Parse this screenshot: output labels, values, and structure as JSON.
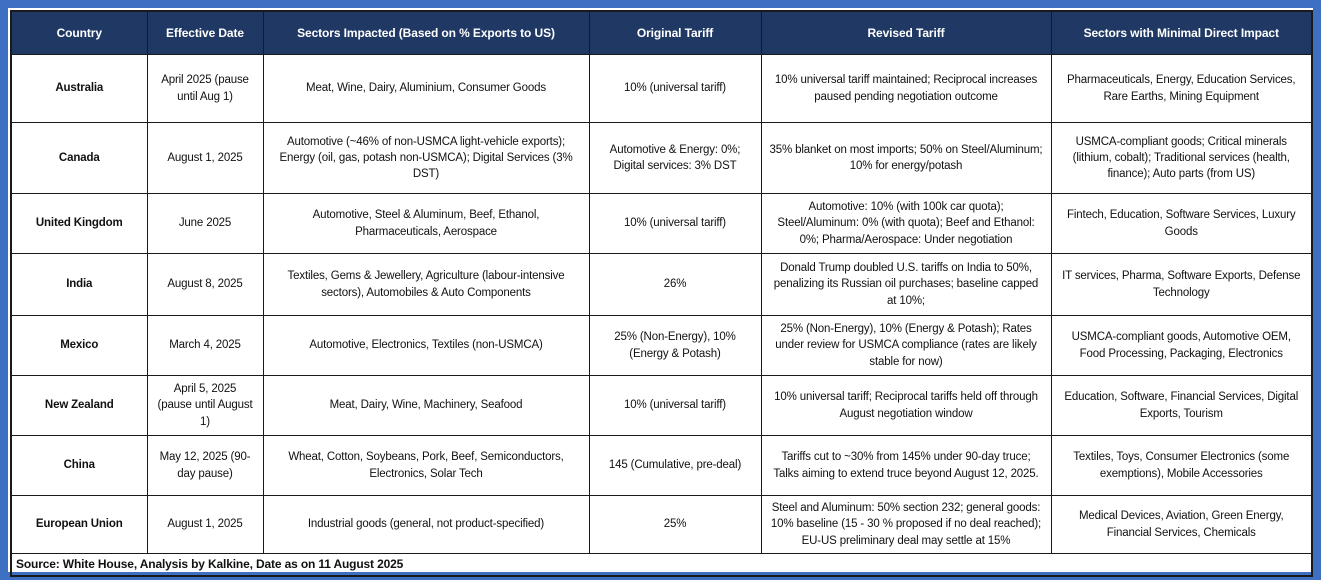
{
  "theme": {
    "frame_border_color": "#3d6fc2",
    "header_bg_color": "#1F3864",
    "header_text_color": "#FFFFFF",
    "body_text_color": "#111111"
  },
  "table": {
    "columns": [
      "Country",
      "Effective Date",
      "Sectors Impacted (Based on % Exports to US)",
      "Original Tariff",
      "Revised Tariff",
      "Sectors with Minimal Direct Impact"
    ],
    "rows": [
      {
        "country": "Australia",
        "effective_date": "April 2025 (pause until Aug 1)",
        "sectors_impacted": "Meat, Wine, Dairy, Aluminium, Consumer Goods",
        "original_tariff": "10% (universal tariff)",
        "revised_tariff": "10% universal tariff maintained; Reciprocal increases paused pending negotiation outcome",
        "minimal_impact": "Pharmaceuticals, Energy, Education Services, Rare Earths, Mining Equipment"
      },
      {
        "country": "Canada",
        "effective_date": "August 1, 2025",
        "sectors_impacted": "Automotive (~46% of non-USMCA light-vehicle exports); Energy (oil, gas, potash non-USMCA); Digital Services (3% DST)",
        "original_tariff": "Automotive & Energy: 0%; Digital services: 3% DST",
        "revised_tariff": "35% blanket on most imports; 50% on Steel/Aluminum; 10% for energy/potash",
        "minimal_impact": "USMCA-compliant goods; Critical minerals (lithium, cobalt); Traditional services (health, finance); Auto parts (from US)"
      },
      {
        "country": "United Kingdom",
        "effective_date": "June 2025",
        "sectors_impacted": "Automotive, Steel & Aluminum, Beef, Ethanol, Pharmaceuticals, Aerospace",
        "original_tariff": "10% (universal tariff)",
        "revised_tariff": "Automotive: 10% (with 100k car quota); Steel/Aluminum: 0% (with quota); Beef and Ethanol: 0%; Pharma/Aerospace: Under negotiation",
        "minimal_impact": "Fintech, Education, Software Services, Luxury Goods"
      },
      {
        "country": "India",
        "effective_date": "August 8, 2025",
        "sectors_impacted": "Textiles, Gems & Jewellery, Agriculture (labour-intensive sectors), Automobiles & Auto Components",
        "original_tariff": "26%",
        "revised_tariff": "Donald Trump doubled U.S. tariffs on India to 50%, penalizing its Russian oil purchases; baseline capped at 10%;",
        "minimal_impact": "IT services, Pharma, Software Exports, Defense Technology"
      },
      {
        "country": "Mexico",
        "effective_date": "March 4, 2025",
        "sectors_impacted": "Automotive, Electronics, Textiles (non-USMCA)",
        "original_tariff": "25% (Non-Energy), 10% (Energy & Potash)",
        "revised_tariff": "25% (Non-Energy), 10% (Energy & Potash); Rates under review for USMCA compliance (rates are likely stable for now)",
        "minimal_impact": "USMCA-compliant goods, Automotive OEM, Food Processing, Packaging, Electronics"
      },
      {
        "country": "New Zealand",
        "effective_date": "April 5, 2025 (pause until August 1)",
        "sectors_impacted": "Meat, Dairy, Wine, Machinery, Seafood",
        "original_tariff": "10% (universal tariff)",
        "revised_tariff": "10% universal tariff; Reciprocal tariffs held off through August negotiation window",
        "minimal_impact": "Education, Software, Financial Services, Digital Exports, Tourism"
      },
      {
        "country": "China",
        "effective_date": "May 12, 2025 (90-day pause)",
        "sectors_impacted": "Wheat, Cotton, Soybeans, Pork, Beef, Semiconductors, Electronics, Solar Tech",
        "original_tariff": "145 (Cumulative, pre-deal)",
        "revised_tariff": "Tariffs cut to ~30% from 145% under 90-day truce; Talks aiming to extend truce beyond August 12, 2025.",
        "minimal_impact": "Textiles, Toys, Consumer Electronics (some exemptions), Mobile Accessories"
      },
      {
        "country": "European Union",
        "effective_date": "August 1, 2025",
        "sectors_impacted": "Industrial goods (general, not product-specified)",
        "original_tariff": "25%",
        "revised_tariff": "Steel and Aluminum: 50% section 232; general goods: 10% baseline (15 - 30 % proposed if no deal reached); EU-US preliminary deal may settle at 15%",
        "minimal_impact": "Medical Devices, Aviation, Green Energy, Financial Services, Chemicals"
      }
    ],
    "source_note": "Source: White House, Analysis by Kalkine, Date as on 11 August 2025"
  }
}
